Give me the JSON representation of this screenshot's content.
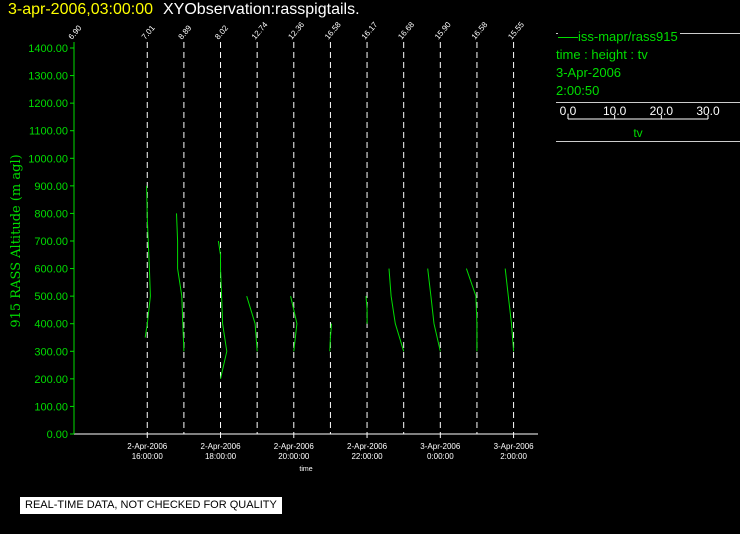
{
  "header": {
    "timestamp": "3-apr-2006,03:00:00",
    "observation": "XYObservation:rasspigtails."
  },
  "legend": {
    "series_label": "iss-mapr/rass915",
    "desc": "time : height : tv",
    "date": "3-Apr-2006",
    "time": "2:00:50",
    "scale_ticks": [
      "0.0",
      "10.0",
      "20.0",
      "30.0"
    ],
    "scale_label": "tv"
  },
  "footer": {
    "notice": "REAL-TIME DATA, NOT CHECKED FOR QUALITY"
  },
  "colors": {
    "trace": "#00dd00",
    "axis_text": "#00dd00",
    "ref_line": "#ffffff",
    "background": "#000000"
  },
  "chart_data": {
    "type": "line",
    "ylabel": "915 RASS Altitude (m agl)",
    "xlabel": "time",
    "ylim": [
      0,
      1400
    ],
    "yticks": [
      "0.00",
      "100.00",
      "200.00",
      "300.00",
      "400.00",
      "500.00",
      "600.00",
      "700.00",
      "800.00",
      "900.00",
      "1000.00",
      "1100.00",
      "1200.00",
      "1300.00",
      "1400.00"
    ],
    "xlim": [
      "2-Apr-2006 14:00:00",
      "3-Apr-2006 02:40:00"
    ],
    "xticks": [
      {
        "date": "2-Apr-2006",
        "time": "16:00:00",
        "t": "2006-04-02T16:00:00"
      },
      {
        "date": "2-Apr-2006",
        "time": "18:00:00",
        "t": "2006-04-02T18:00:00"
      },
      {
        "date": "2-Apr-2006",
        "time": "20:00:00",
        "t": "2006-04-02T20:00:00"
      },
      {
        "date": "2-Apr-2006",
        "time": "22:00:00",
        "t": "2006-04-02T22:00:00"
      },
      {
        "date": "3-Apr-2006",
        "time": "0:00:00",
        "t": "2006-04-03T00:00:00"
      },
      {
        "date": "3-Apr-2006",
        "time": "2:00:00",
        "t": "2006-04-03T02:00:00"
      }
    ],
    "tv_axis": {
      "range": [
        0,
        30
      ],
      "units_per_tick": 10
    },
    "profiles": [
      {
        "time": "2006-04-02T14:00:00",
        "ref_tv": "6.90",
        "points": []
      },
      {
        "time": "2006-04-02T16:00:00",
        "ref_tv": "7.01",
        "points": [
          [
            900,
            -0.3
          ],
          [
            780,
            0
          ],
          [
            600,
            1
          ],
          [
            500,
            1.5
          ],
          [
            400,
            0
          ],
          [
            350,
            -1
          ]
        ]
      },
      {
        "time": "2006-04-02T17:00:00",
        "ref_tv": "8.89",
        "points": [
          [
            800,
            -3.5
          ],
          [
            700,
            -3
          ],
          [
            600,
            -3
          ],
          [
            500,
            -1
          ],
          [
            400,
            -0.5
          ],
          [
            300,
            0
          ]
        ]
      },
      {
        "time": "2006-04-02T18:00:00",
        "ref_tv": "8.02",
        "points": [
          [
            700,
            -1
          ],
          [
            650,
            0
          ],
          [
            600,
            0
          ],
          [
            500,
            0.5
          ],
          [
            400,
            1
          ],
          [
            300,
            3
          ],
          [
            200,
            0
          ]
        ]
      },
      {
        "time": "2006-04-02T19:00:00",
        "ref_tv": "12.74",
        "points": [
          [
            500,
            -5
          ],
          [
            400,
            -1
          ],
          [
            300,
            0
          ]
        ]
      },
      {
        "time": "2006-04-02T20:00:00",
        "ref_tv": "12.36",
        "points": [
          [
            500,
            -1.5
          ],
          [
            450,
            0
          ],
          [
            400,
            1.5
          ],
          [
            300,
            0
          ]
        ]
      },
      {
        "time": "2006-04-02T21:00:00",
        "ref_tv": "16.58",
        "points": [
          [
            400,
            0.5
          ],
          [
            350,
            0
          ],
          [
            300,
            -0.3
          ]
        ]
      },
      {
        "time": "2006-04-02T22:00:00",
        "ref_tv": "16.17",
        "points": [
          [
            500,
            -0.5
          ],
          [
            450,
            0
          ],
          [
            400,
            0
          ]
        ]
      },
      {
        "time": "2006-04-02T23:00:00",
        "ref_tv": "16.68",
        "points": [
          [
            600,
            -7
          ],
          [
            500,
            -6
          ],
          [
            400,
            -4
          ],
          [
            300,
            0
          ]
        ]
      },
      {
        "time": "2006-04-03T00:00:00",
        "ref_tv": "15.90",
        "points": [
          [
            600,
            -6
          ],
          [
            500,
            -4.5
          ],
          [
            400,
            -3
          ],
          [
            300,
            0
          ]
        ]
      },
      {
        "time": "2006-04-03T01:00:00",
        "ref_tv": "16.58",
        "points": [
          [
            600,
            -5
          ],
          [
            500,
            -0.5
          ],
          [
            400,
            0
          ],
          [
            300,
            0
          ]
        ]
      },
      {
        "time": "2006-04-03T02:00:00",
        "ref_tv": "15.55",
        "points": [
          [
            600,
            -4
          ],
          [
            500,
            -2.5
          ],
          [
            400,
            -1
          ],
          [
            300,
            0
          ]
        ]
      }
    ]
  }
}
